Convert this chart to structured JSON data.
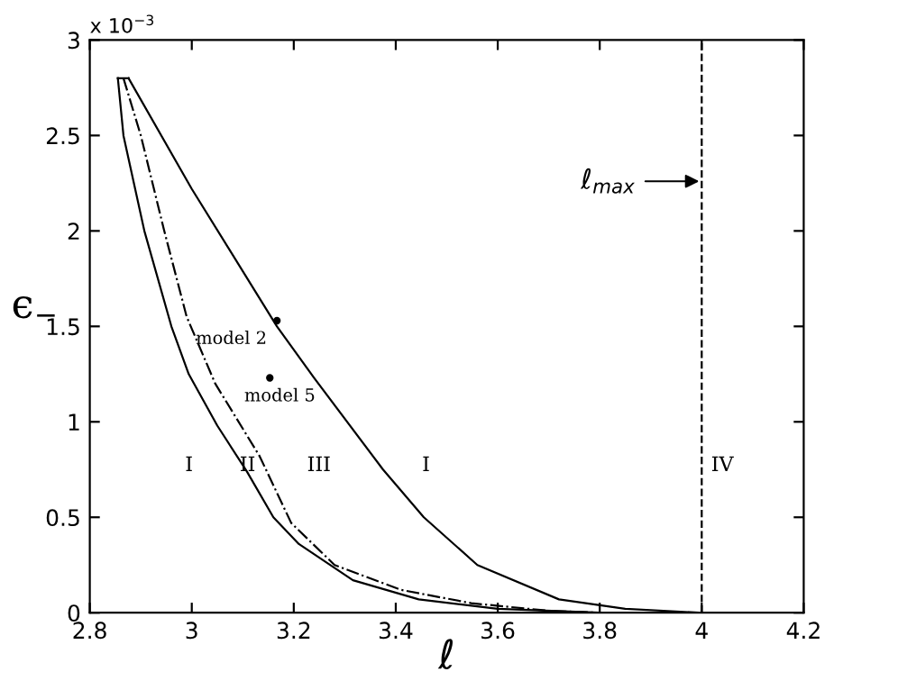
{
  "chart_data": {
    "type": "line",
    "xlabel": "ℓ",
    "ylabel": "ϵ$_{−}$",
    "xlim": [
      2.8,
      4.2
    ],
    "xticks": [
      2.8,
      3,
      3.2,
      3.4,
      3.6,
      3.8,
      4,
      4.2
    ],
    "ylim": [
      0,
      3
    ],
    "yticks": [
      0,
      0.5,
      1,
      1.5,
      2,
      2.5,
      3
    ],
    "grid": false,
    "legend": false,
    "series": [
      {
        "color": "#000000",
        "line_style": "solid",
        "x": [
          2.855,
          2.876
        ],
        "values": [
          2.8,
          2.8
        ]
      },
      {
        "color": "#000000",
        "line_style": "solid",
        "x": [
          2.876,
          3.0,
          3.167,
          3.24,
          3.375,
          3.455,
          3.56,
          3.72,
          3.85,
          4.0
        ],
        "values": [
          2.8,
          2.22,
          1.5,
          1.23,
          0.75,
          0.5,
          0.25,
          0.07,
          0.02,
          0
        ]
      },
      {
        "color": "#000000",
        "line_style": "solid",
        "x": [
          2.855,
          2.866,
          2.907,
          2.96,
          2.994,
          3.05,
          3.108,
          3.16,
          3.21,
          3.316,
          3.445,
          3.6,
          3.8,
          4.0
        ],
        "values": [
          2.8,
          2.5,
          2.0,
          1.5,
          1.25,
          0.98,
          0.74,
          0.5,
          0.36,
          0.17,
          0.07,
          0.02,
          0,
          0
        ]
      },
      {
        "color": "#000000",
        "line_style": "dashdot",
        "x": [
          2.866,
          2.9,
          2.946,
          2.99,
          3.046,
          3.133,
          3.195,
          3.28,
          3.41,
          3.548,
          3.7,
          3.8
        ],
        "values": [
          2.8,
          2.5,
          2.0,
          1.55,
          1.2,
          0.82,
          0.47,
          0.25,
          0.12,
          0.05,
          0.01,
          0
        ]
      },
      {
        "type": "scatter",
        "color": "#000000",
        "marker": "circle",
        "x": [
          3.167,
          3.153
        ],
        "values": [
          1.53,
          1.23
        ]
      }
    ],
    "ref_lines": [
      {
        "axis": "x",
        "value": 4,
        "color": "#000000",
        "line_style": "dashed"
      }
    ],
    "annotations": [
      "x 10$^{−3}$",
      {
        "text": "model 2",
        "x": 3.167,
        "y": 1.53
      },
      {
        "text": "model 5",
        "x": 3.153,
        "y": 1.23
      },
      "I",
      "II",
      "III",
      "I",
      "IV",
      {
        "text": "ℓ$_{max}$",
        "x": 4,
        "y": 2.26
      }
    ]
  }
}
